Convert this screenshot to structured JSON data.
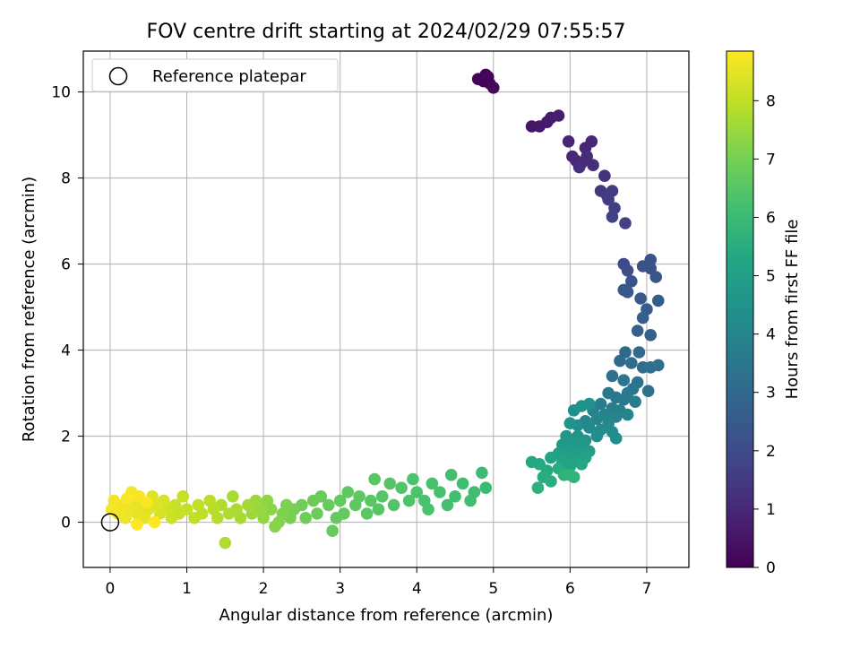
{
  "chart_data": {
    "type": "scatter",
    "title": "FOV centre drift starting at 2024/02/29 07:55:57",
    "xlabel": "Angular distance from reference (arcmin)",
    "ylabel": "Rotation from reference (arcmin)",
    "xlim": [
      -0.35,
      7.55
    ],
    "ylim": [
      -1.05,
      10.95
    ],
    "xticks": [
      0,
      1,
      2,
      3,
      4,
      5,
      6,
      7
    ],
    "yticks": [
      0,
      2,
      4,
      6,
      8,
      10
    ],
    "grid": true,
    "legend": {
      "position": "top-left",
      "entries": [
        {
          "label": "Reference platepar",
          "marker": "open-circle"
        }
      ]
    },
    "reference_point": {
      "x": 0,
      "y": 0
    },
    "colorbar": {
      "label": "Hours from first FF file",
      "colormap": "viridis",
      "range": [
        0,
        8.85
      ],
      "ticks": [
        0,
        1,
        2,
        3,
        4,
        5,
        6,
        7,
        8
      ]
    },
    "series": [
      {
        "color_by": "time_hours",
        "points": [
          [
            4.85,
            10.3,
            0.0
          ],
          [
            4.9,
            10.4,
            0.02
          ],
          [
            4.8,
            10.3,
            0.05
          ],
          [
            4.95,
            10.2,
            0.08
          ],
          [
            4.87,
            10.25,
            0.1
          ],
          [
            5.0,
            10.1,
            0.15
          ],
          [
            4.93,
            10.35,
            0.12
          ],
          [
            5.5,
            9.2,
            0.5
          ],
          [
            5.6,
            9.2,
            0.55
          ],
          [
            5.7,
            9.3,
            0.6
          ],
          [
            5.75,
            9.4,
            0.65
          ],
          [
            5.85,
            9.45,
            0.7
          ],
          [
            5.98,
            8.85,
            0.9
          ],
          [
            6.2,
            8.7,
            0.95
          ],
          [
            6.28,
            8.85,
            0.97
          ],
          [
            6.03,
            8.5,
            1.0
          ],
          [
            6.08,
            8.4,
            1.05
          ],
          [
            6.15,
            8.35,
            1.1
          ],
          [
            6.22,
            8.5,
            1.12
          ],
          [
            6.3,
            8.3,
            1.15
          ],
          [
            6.12,
            8.25,
            1.18
          ],
          [
            6.45,
            8.05,
            1.3
          ],
          [
            6.4,
            7.7,
            1.4
          ],
          [
            6.48,
            7.6,
            1.45
          ],
          [
            6.55,
            7.7,
            1.5
          ],
          [
            6.5,
            7.5,
            1.55
          ],
          [
            6.58,
            7.3,
            1.6
          ],
          [
            6.55,
            7.1,
            1.65
          ],
          [
            6.72,
            6.95,
            1.7
          ],
          [
            6.7,
            6.0,
            2.0
          ],
          [
            6.75,
            5.85,
            2.1
          ],
          [
            6.95,
            5.95,
            2.15
          ],
          [
            7.05,
            5.9,
            2.2
          ],
          [
            7.05,
            6.1,
            2.25
          ],
          [
            6.8,
            5.6,
            2.3
          ],
          [
            7.12,
            5.7,
            2.35
          ],
          [
            6.7,
            5.4,
            2.4
          ],
          [
            6.75,
            5.35,
            2.45
          ],
          [
            6.92,
            5.2,
            2.5
          ],
          [
            7.15,
            5.15,
            2.55
          ],
          [
            7.0,
            4.95,
            2.6
          ],
          [
            6.95,
            4.75,
            2.65
          ],
          [
            6.88,
            4.45,
            2.7
          ],
          [
            7.05,
            4.35,
            2.75
          ],
          [
            6.72,
            3.95,
            3.0
          ],
          [
            6.9,
            3.95,
            3.05
          ],
          [
            6.65,
            3.75,
            3.08
          ],
          [
            6.8,
            3.7,
            3.1
          ],
          [
            6.95,
            3.6,
            3.15
          ],
          [
            7.05,
            3.6,
            3.2
          ],
          [
            7.15,
            3.65,
            3.25
          ],
          [
            6.55,
            3.4,
            3.3
          ],
          [
            6.88,
            3.25,
            3.35
          ],
          [
            7.02,
            3.05,
            3.4
          ],
          [
            6.7,
            3.3,
            3.42
          ],
          [
            6.82,
            3.1,
            3.45
          ],
          [
            6.5,
            3.0,
            3.5
          ],
          [
            6.6,
            2.9,
            3.55
          ],
          [
            6.7,
            2.85,
            3.6
          ],
          [
            6.75,
            3.0,
            3.62
          ],
          [
            6.85,
            2.8,
            3.65
          ],
          [
            6.4,
            2.75,
            3.7
          ],
          [
            6.55,
            2.65,
            3.75
          ],
          [
            6.65,
            2.6,
            3.8
          ],
          [
            6.3,
            2.6,
            3.85
          ],
          [
            6.45,
            2.5,
            3.9
          ],
          [
            6.6,
            2.45,
            3.92
          ],
          [
            6.75,
            2.5,
            3.95
          ],
          [
            6.35,
            2.4,
            4.0
          ],
          [
            6.2,
            2.35,
            4.05
          ],
          [
            6.5,
            2.3,
            4.1
          ],
          [
            6.25,
            2.2,
            4.15
          ],
          [
            6.4,
            2.15,
            4.2
          ],
          [
            6.1,
            2.25,
            4.25
          ],
          [
            6.55,
            2.1,
            4.3
          ],
          [
            6.35,
            2.0,
            4.35
          ],
          [
            6.6,
            1.95,
            4.38
          ],
          [
            6.05,
            2.6,
            4.4
          ],
          [
            6.15,
            2.7,
            4.42
          ],
          [
            6.25,
            2.75,
            4.45
          ],
          [
            6.0,
            2.3,
            4.5
          ],
          [
            6.1,
            2.0,
            4.55
          ],
          [
            6.2,
            1.9,
            4.6
          ],
          [
            5.95,
            2.0,
            4.65
          ],
          [
            6.05,
            1.85,
            4.7
          ],
          [
            6.15,
            1.75,
            4.75
          ],
          [
            5.9,
            1.8,
            4.8
          ],
          [
            6.0,
            1.7,
            4.85
          ],
          [
            6.1,
            1.6,
            4.9
          ],
          [
            6.25,
            1.65,
            4.92
          ],
          [
            5.85,
            1.6,
            4.95
          ],
          [
            5.95,
            1.55,
            5.0
          ],
          [
            6.05,
            1.45,
            5.05
          ],
          [
            6.2,
            1.5,
            5.08
          ],
          [
            5.75,
            1.5,
            5.1
          ],
          [
            5.9,
            1.4,
            5.15
          ],
          [
            6.0,
            1.3,
            5.2
          ],
          [
            6.15,
            1.35,
            5.25
          ],
          [
            5.5,
            1.4,
            5.3
          ],
          [
            5.6,
            1.35,
            5.35
          ],
          [
            5.7,
            1.2,
            5.4
          ],
          [
            5.85,
            1.25,
            5.45
          ],
          [
            5.65,
            1.05,
            5.5
          ],
          [
            5.75,
            0.95,
            5.55
          ],
          [
            5.58,
            0.8,
            5.6
          ],
          [
            5.92,
            1.1,
            5.65
          ],
          [
            6.05,
            1.05,
            5.7
          ],
          [
            6.0,
            1.1,
            5.72
          ],
          [
            4.85,
            1.15,
            6.0
          ],
          [
            4.9,
            0.8,
            6.05
          ],
          [
            4.75,
            0.7,
            6.08
          ],
          [
            4.7,
            0.5,
            6.1
          ],
          [
            4.6,
            0.9,
            6.12
          ],
          [
            4.5,
            0.6,
            6.15
          ],
          [
            4.45,
            1.1,
            6.18
          ],
          [
            4.4,
            0.4,
            6.2
          ],
          [
            4.3,
            0.7,
            6.22
          ],
          [
            4.2,
            0.9,
            6.25
          ],
          [
            4.1,
            0.5,
            6.28
          ],
          [
            4.15,
            0.3,
            6.3
          ],
          [
            4.0,
            0.7,
            6.32
          ],
          [
            3.95,
            1.0,
            6.35
          ],
          [
            3.9,
            0.5,
            6.38
          ],
          [
            3.8,
            0.8,
            6.4
          ],
          [
            3.7,
            0.4,
            6.42
          ],
          [
            3.65,
            0.9,
            6.45
          ],
          [
            3.55,
            0.6,
            6.48
          ],
          [
            3.5,
            0.3,
            6.5
          ],
          [
            3.45,
            1.0,
            6.52
          ],
          [
            3.4,
            0.5,
            6.55
          ],
          [
            3.35,
            0.2,
            6.58
          ],
          [
            3.25,
            0.6,
            6.6
          ],
          [
            3.2,
            0.4,
            6.62
          ],
          [
            3.1,
            0.7,
            6.65
          ],
          [
            3.05,
            0.2,
            6.68
          ],
          [
            3.0,
            0.5,
            6.7
          ],
          [
            2.95,
            0.1,
            6.72
          ],
          [
            2.9,
            -0.2,
            6.75
          ],
          [
            2.85,
            0.4,
            6.78
          ],
          [
            2.75,
            0.6,
            6.8
          ],
          [
            2.7,
            0.2,
            6.82
          ],
          [
            2.65,
            0.5,
            6.85
          ],
          [
            2.55,
            0.1,
            6.88
          ],
          [
            2.5,
            0.4,
            6.9
          ],
          [
            2.4,
            0.3,
            7.0
          ],
          [
            2.35,
            0.1,
            7.05
          ],
          [
            2.3,
            0.4,
            7.1
          ],
          [
            2.25,
            0.2,
            7.15
          ],
          [
            2.2,
            0.0,
            7.2
          ],
          [
            2.15,
            -0.1,
            7.25
          ],
          [
            2.1,
            0.3,
            7.3
          ],
          [
            2.05,
            0.5,
            7.35
          ],
          [
            2.0,
            0.1,
            7.4
          ],
          [
            1.95,
            0.3,
            7.45
          ],
          [
            1.9,
            0.5,
            7.5
          ],
          [
            1.85,
            0.2,
            7.55
          ],
          [
            1.8,
            0.4,
            7.6
          ],
          [
            1.7,
            0.1,
            7.65
          ],
          [
            1.65,
            0.3,
            7.7
          ],
          [
            1.6,
            0.6,
            7.72
          ],
          [
            1.55,
            0.2,
            7.75
          ],
          [
            1.5,
            -0.48,
            7.78
          ],
          [
            1.45,
            0.4,
            7.8
          ],
          [
            1.4,
            0.1,
            7.85
          ],
          [
            1.35,
            0.3,
            7.9
          ],
          [
            1.3,
            0.5,
            7.92
          ],
          [
            1.2,
            0.2,
            7.95
          ],
          [
            1.15,
            0.4,
            8.0
          ],
          [
            1.1,
            0.1,
            8.02
          ],
          [
            1.0,
            0.3,
            8.05
          ],
          [
            0.95,
            0.6,
            8.08
          ],
          [
            0.9,
            0.2,
            8.1
          ],
          [
            0.85,
            0.4,
            8.12
          ],
          [
            0.8,
            0.1,
            8.15
          ],
          [
            0.75,
            0.3,
            8.18
          ],
          [
            0.7,
            0.5,
            8.3
          ],
          [
            0.65,
            0.2,
            8.35
          ],
          [
            0.6,
            0.4,
            8.4
          ],
          [
            0.55,
            0.6,
            8.42
          ],
          [
            0.5,
            0.3,
            8.45
          ],
          [
            0.45,
            0.1,
            8.5
          ],
          [
            0.4,
            0.4,
            8.52
          ],
          [
            0.35,
            0.2,
            8.55
          ],
          [
            0.3,
            0.5,
            8.58
          ],
          [
            0.25,
            0.3,
            8.6
          ],
          [
            0.2,
            0.1,
            8.62
          ],
          [
            0.15,
            0.4,
            8.65
          ],
          [
            0.1,
            0.2,
            8.68
          ],
          [
            0.05,
            0.5,
            8.7
          ],
          [
            0.02,
            0.3,
            8.72
          ],
          [
            0.28,
            0.7,
            8.75
          ],
          [
            0.38,
            0.6,
            8.78
          ],
          [
            0.48,
            0.45,
            8.8
          ],
          [
            0.22,
            0.55,
            8.82
          ],
          [
            0.35,
            -0.05,
            8.84
          ],
          [
            0.58,
            0.0,
            8.85
          ]
        ]
      }
    ]
  }
}
